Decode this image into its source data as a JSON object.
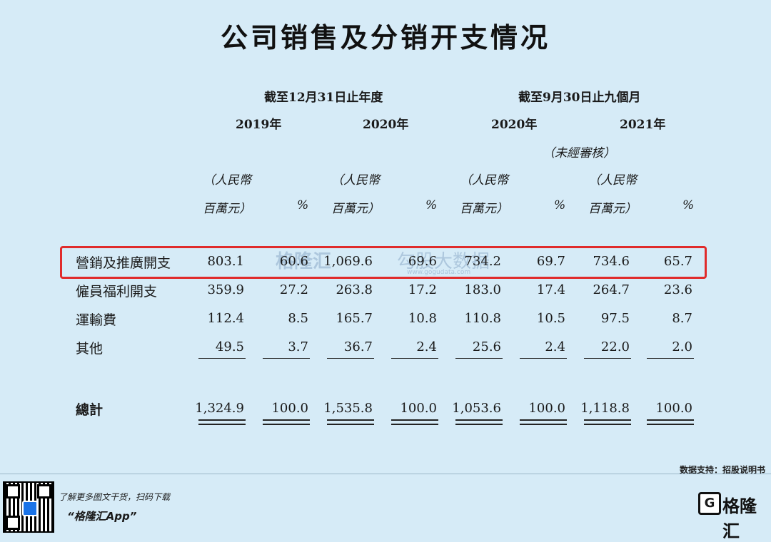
{
  "title": "公司销售及分销开支情况",
  "periods": {
    "annual": "截至12月31日止年度",
    "nine_months": "截至9月30日止九個月"
  },
  "years": [
    "2019年",
    "2020年",
    "2020年",
    "2021年"
  ],
  "unaudited": "（未經審核）",
  "unit_line1": "（人民幣",
  "unit_line2": "百萬元）",
  "percent": "%",
  "rows": [
    {
      "label": "營銷及推廣開支",
      "values": [
        "803.1",
        "60.6",
        "1,069.6",
        "69.6",
        "734.2",
        "69.7",
        "734.6",
        "65.7"
      ],
      "highlighted": true
    },
    {
      "label": "僱員福利開支",
      "values": [
        "359.9",
        "27.2",
        "263.8",
        "17.2",
        "183.0",
        "17.4",
        "264.7",
        "23.6"
      ]
    },
    {
      "label": "運輸費",
      "values": [
        "112.4",
        "8.5",
        "165.7",
        "10.8",
        "110.8",
        "10.5",
        "97.5",
        "8.7"
      ]
    },
    {
      "label": "其他",
      "values": [
        "49.5",
        "3.7",
        "36.7",
        "2.4",
        "25.6",
        "2.4",
        "22.0",
        "2.0"
      ]
    }
  ],
  "total": {
    "label": "總計",
    "values": [
      "1,324.9",
      "100.0",
      "1,535.8",
      "100.0",
      "1,053.6",
      "100.0",
      "1,118.8",
      "100.0"
    ]
  },
  "watermark": {
    "brand": "格隆汇",
    "slogan": "勾股大数据",
    "url": "www.gogudata.com"
  },
  "source": "数据支持：招股说明书",
  "footer": {
    "promo_line": "了解更多图文干货，扫码下载",
    "app_name": "“格隆汇App”",
    "brand": "格隆汇",
    "logo_letter": "G"
  },
  "colors": {
    "background": "#d6ebf7",
    "highlight": "#e02b2b"
  }
}
